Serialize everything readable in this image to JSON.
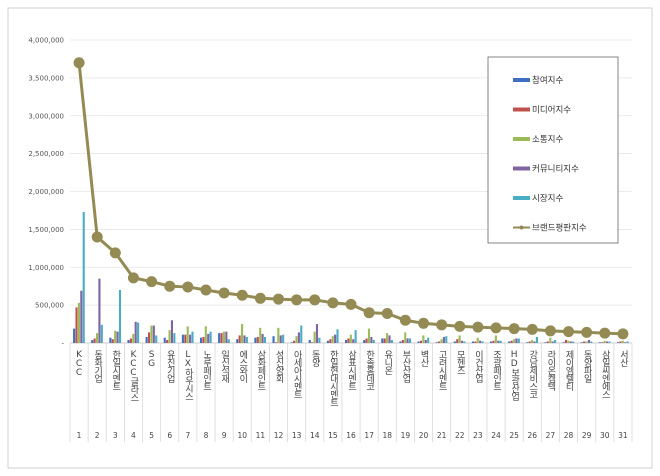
{
  "chart_data": {
    "type": "bar+line",
    "title": "",
    "xlabel": "",
    "ylabel": "",
    "ylim": [
      0,
      4000000
    ],
    "yticks": [
      "-",
      "500,000",
      "1,000,000",
      "1,500,000",
      "2,000,000",
      "2,500,000",
      "3,000,000",
      "3,500,000",
      "4,000,000"
    ],
    "grid": true,
    "legend_position": "right",
    "categories": [
      "KCC",
      "동화기업",
      "한일시멘트",
      "KCC글라스",
      "SG",
      "유진기업",
      "LX하우시스",
      "노루페인트",
      "일신석재",
      "에스와이",
      "삼화페인트",
      "성신양회",
      "아세아시멘트",
      "동양",
      "한일현대시멘트",
      "삼표시멘트",
      "한솔홈데코",
      "유니온",
      "부산산업",
      "벽산",
      "고려시멘트",
      "모헨즈",
      "이건산업",
      "조광페인트",
      "HD보광산업",
      "강남제비스코",
      "라이온켐텍",
      "제이엠텔티",
      "동양파일",
      "삼일씨엔에스",
      "서산"
    ],
    "ranks": [
      "1",
      "2",
      "3",
      "4",
      "5",
      "6",
      "7",
      "8",
      "9",
      "10",
      "11",
      "12",
      "13",
      "14",
      "15",
      "16",
      "17",
      "18",
      "19",
      "20",
      "21",
      "22",
      "23",
      "24",
      "25",
      "26",
      "27",
      "28",
      "29",
      "30",
      "31"
    ],
    "series": [
      {
        "name": "참여지수",
        "type": "bar",
        "color": "#3f6fbf",
        "values": [
          190000,
          40000,
          70000,
          40000,
          80000,
          70000,
          110000,
          70000,
          130000,
          50000,
          70000,
          90000,
          10000,
          40000,
          30000,
          40000,
          40000,
          60000,
          20000,
          20000,
          10000,
          20000,
          20000,
          20000,
          20000,
          10000,
          10000,
          10000,
          10000,
          10000,
          10000
        ]
      },
      {
        "name": "미디어지수",
        "type": "bar",
        "color": "#c0504d",
        "values": [
          470000,
          60000,
          50000,
          60000,
          140000,
          40000,
          110000,
          80000,
          130000,
          100000,
          80000,
          10000,
          30000,
          10000,
          50000,
          60000,
          60000,
          60000,
          40000,
          30000,
          20000,
          50000,
          20000,
          30000,
          30000,
          20000,
          20000,
          40000,
          20000,
          10000,
          20000
        ]
      },
      {
        "name": "소통지수",
        "type": "bar",
        "color": "#9bbb59",
        "values": [
          530000,
          130000,
          160000,
          120000,
          230000,
          170000,
          220000,
          220000,
          150000,
          250000,
          200000,
          200000,
          90000,
          150000,
          90000,
          110000,
          190000,
          130000,
          140000,
          100000,
          50000,
          100000,
          70000,
          100000,
          50000,
          40000,
          70000,
          30000,
          20000,
          30000,
          30000
        ]
      },
      {
        "name": "커뮤니티지수",
        "type": "bar",
        "color": "#8064a2",
        "values": [
          690000,
          850000,
          150000,
          280000,
          230000,
          300000,
          110000,
          120000,
          150000,
          100000,
          120000,
          100000,
          140000,
          250000,
          110000,
          50000,
          80000,
          100000,
          60000,
          40000,
          80000,
          30000,
          30000,
          30000,
          60000,
          20000,
          20000,
          20000,
          40000,
          20000,
          10000
        ]
      },
      {
        "name": "시장지수",
        "type": "bar",
        "color": "#4bacc6",
        "values": [
          1730000,
          240000,
          700000,
          270000,
          100000,
          130000,
          150000,
          150000,
          50000,
          80000,
          80000,
          110000,
          230000,
          70000,
          180000,
          170000,
          40000,
          40000,
          60000,
          70000,
          90000,
          20000,
          20000,
          30000,
          60000,
          80000,
          40000,
          20000,
          20000,
          20000,
          20000
        ]
      },
      {
        "name": "브랜드평판지수",
        "type": "line",
        "color": "#948a54",
        "values": [
          3700000,
          1400000,
          1190000,
          860000,
          810000,
          750000,
          740000,
          700000,
          660000,
          630000,
          590000,
          580000,
          570000,
          570000,
          530000,
          510000,
          400000,
          390000,
          300000,
          260000,
          240000,
          220000,
          210000,
          200000,
          190000,
          180000,
          160000,
          150000,
          140000,
          130000,
          120000
        ]
      }
    ]
  }
}
